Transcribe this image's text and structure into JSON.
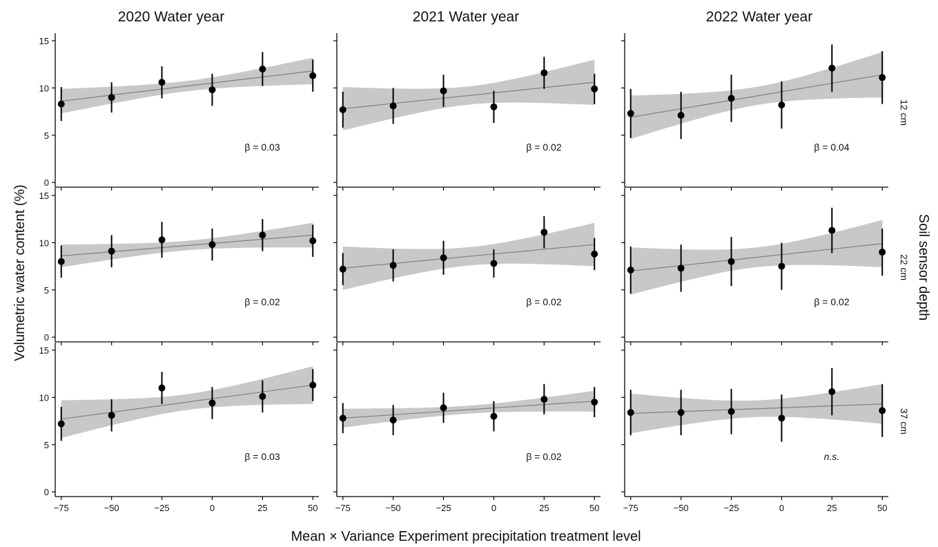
{
  "chart_data": {
    "type": "scatter",
    "layout": "facet-grid",
    "ylabel": "Volumetric water content (%)",
    "xlabel": "Mean × Variance Experiment precipitation treatment level",
    "row_strip_label": "Soil sensor depth",
    "column_labels": [
      "2020 Water year",
      "2021 Water year",
      "2022 Water year"
    ],
    "row_labels": [
      "12 cm",
      "22 cm",
      "37 cm"
    ],
    "x_ticks": [
      -75,
      -50,
      -25,
      0,
      25,
      50
    ],
    "x_tick_labels": [
      "−75",
      "−50",
      "−25",
      "0",
      "25",
      "50"
    ],
    "y_ticks": [
      0,
      5,
      10,
      15
    ],
    "y_tick_labels": [
      "0",
      "5",
      "10",
      "15"
    ],
    "xlim": [
      -78,
      53
    ],
    "ylim": [
      -0.5,
      15.8
    ],
    "x": [
      -75,
      -50,
      -25,
      0,
      25,
      50
    ],
    "panels": [
      {
        "year": "2020 Water year",
        "depth": "12 cm",
        "mean": [
          8.3,
          9.0,
          10.6,
          9.8,
          12.0,
          11.3
        ],
        "err": [
          1.8,
          1.6,
          1.7,
          1.7,
          1.8,
          1.7
        ],
        "fit": [
          8.6,
          11.8
        ],
        "band": [
          1.3,
          1.4
        ],
        "annotation": "β = 0.03",
        "annotation_italic": false
      },
      {
        "year": "2021 Water year",
        "depth": "12 cm",
        "mean": [
          7.7,
          8.1,
          9.7,
          8.0,
          11.6,
          9.9
        ],
        "err": [
          1.9,
          1.9,
          1.7,
          1.7,
          1.7,
          1.6
        ],
        "fit": [
          7.8,
          10.6
        ],
        "band": [
          2.3,
          2.4
        ],
        "annotation": "β = 0.02",
        "annotation_italic": false
      },
      {
        "year": "2022 Water year",
        "depth": "12 cm",
        "mean": [
          7.3,
          7.1,
          8.9,
          8.2,
          12.1,
          11.1
        ],
        "err": [
          2.6,
          2.5,
          2.5,
          2.5,
          2.5,
          2.8
        ],
        "fit": [
          6.9,
          11.4
        ],
        "band": [
          2.3,
          2.4
        ],
        "annotation": "β = 0.04",
        "annotation_italic": false
      },
      {
        "year": "2020 Water year",
        "depth": "22 cm",
        "mean": [
          8.0,
          9.1,
          10.3,
          9.8,
          10.8,
          10.2
        ],
        "err": [
          1.7,
          1.7,
          1.9,
          1.7,
          1.7,
          1.7
        ],
        "fit": [
          8.6,
          10.8
        ],
        "band": [
          1.2,
          1.3
        ],
        "annotation": "β = 0.02",
        "annotation_italic": false
      },
      {
        "year": "2021 Water year",
        "depth": "22 cm",
        "mean": [
          7.2,
          7.6,
          8.4,
          7.8,
          11.1,
          8.8
        ],
        "err": [
          1.7,
          1.7,
          1.8,
          1.5,
          1.7,
          1.7
        ],
        "fit": [
          7.3,
          9.8
        ],
        "band": [
          2.3,
          2.3
        ],
        "annotation": "β = 0.02",
        "annotation_italic": false
      },
      {
        "year": "2022 Water year",
        "depth": "22 cm",
        "mean": [
          7.1,
          7.3,
          8.0,
          7.5,
          11.3,
          9.0
        ],
        "err": [
          2.5,
          2.5,
          2.6,
          2.5,
          2.4,
          2.5
        ],
        "fit": [
          7.0,
          9.9
        ],
        "band": [
          2.5,
          2.5
        ],
        "annotation": "β = 0.02",
        "annotation_italic": false
      },
      {
        "year": "2020 Water year",
        "depth": "37 cm",
        "mean": [
          7.2,
          8.1,
          11.0,
          9.4,
          10.1,
          11.3
        ],
        "err": [
          1.8,
          1.7,
          1.7,
          1.7,
          1.7,
          1.7
        ],
        "fit": [
          7.7,
          11.3
        ],
        "band": [
          2.0,
          2.0
        ],
        "annotation": "β = 0.03",
        "annotation_italic": false
      },
      {
        "year": "2021 Water year",
        "depth": "37 cm",
        "mean": [
          7.8,
          7.6,
          8.9,
          8.0,
          9.8,
          9.5
        ],
        "err": [
          1.6,
          1.6,
          1.6,
          1.6,
          1.6,
          1.6
        ],
        "fit": [
          7.8,
          9.6
        ],
        "band": [
          1.0,
          1.1
        ],
        "annotation": "β = 0.02",
        "annotation_italic": false
      },
      {
        "year": "2022 Water year",
        "depth": "37 cm",
        "mean": [
          8.4,
          8.4,
          8.5,
          7.8,
          10.6,
          8.6
        ],
        "err": [
          2.4,
          2.4,
          2.4,
          2.5,
          2.5,
          2.8
        ],
        "fit": [
          8.3,
          9.3
        ],
        "band": [
          2.1,
          2.1
        ],
        "annotation": "n.s.",
        "annotation_italic": true
      }
    ],
    "colors": {
      "points": "#000000",
      "errorbars": "#000000",
      "fit_line": "#7f7f7f",
      "ci_band": "#c8c8c8",
      "axis": "#000000"
    },
    "grid": false,
    "legend": "none"
  }
}
